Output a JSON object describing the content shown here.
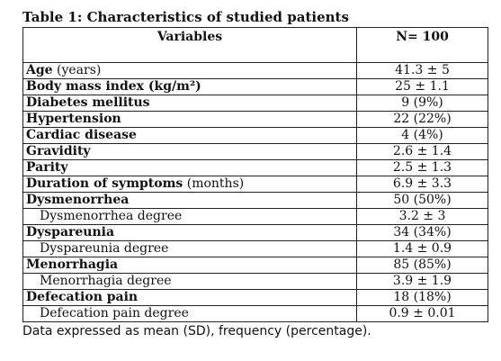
{
  "caption": "Table 1: Characteristics of studied patients",
  "columns": [
    "Variables",
    "N= 100"
  ],
  "rows": [
    {
      "label": "Age",
      "unit": " (years)",
      "value": "41.3 ± 5",
      "sub": false
    },
    {
      "label": "Body mass index (kg/m²)",
      "unit": "",
      "value": "25 ± 1.1",
      "sub": false
    },
    {
      "label": "Diabetes mellitus",
      "unit": "",
      "value": "9 (9%)",
      "sub": false
    },
    {
      "label": "Hypertension",
      "unit": "",
      "value": "22 (22%)",
      "sub": false
    },
    {
      "label": "Cardiac disease",
      "unit": "",
      "value": "4 (4%)",
      "sub": false
    },
    {
      "label": "Gravidity",
      "unit": "",
      "value": "2.6 ± 1.4",
      "sub": false
    },
    {
      "label": "Parity",
      "unit": "",
      "value": "2.5 ± 1.3",
      "sub": false
    },
    {
      "label": "Duration of symptoms",
      "unit": " (months)",
      "value": "6.9 ± 3.3",
      "sub": false
    },
    {
      "label": "Dysmenorrhea",
      "unit": "",
      "value": "50 (50%)",
      "sub": false
    },
    {
      "label": "Dysmenorrhea degree",
      "unit": "",
      "value": "3.2 ± 3",
      "sub": true
    },
    {
      "label": "Dyspareunia",
      "unit": "",
      "value": "34 (34%)",
      "sub": false
    },
    {
      "label": "Dyspareunia degree",
      "unit": "",
      "value": "1.4 ± 0.9",
      "sub": true
    },
    {
      "label": "Menorrhagia",
      "unit": "",
      "value": "85 (85%)",
      "sub": false
    },
    {
      "label": "Menorrhagia degree",
      "unit": "",
      "value": "3.9 ± 1.9",
      "sub": true
    },
    {
      "label": "Defecation pain",
      "unit": "",
      "value": "18 (18%)",
      "sub": false
    },
    {
      "label": "Defecation pain degree",
      "unit": "",
      "value": "0.9 ± 0.01",
      "sub": true
    }
  ],
  "footnote": "Data expressed as mean (SD), frequency (percentage)."
}
